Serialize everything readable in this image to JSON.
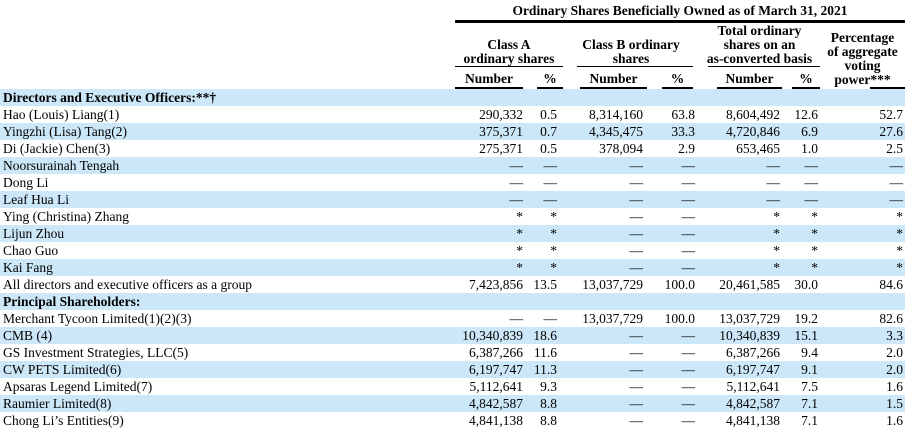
{
  "colors": {
    "row_alt_background": "#cce7f8",
    "text": "#000000",
    "rule": "#000000"
  },
  "table": {
    "title": "Ordinary Shares Beneficially Owned as of March 31, 2021",
    "groups": [
      {
        "label": "Class A ordinary shares",
        "lines": [
          "Class A",
          "ordinary shares"
        ]
      },
      {
        "label": "Class B ordinary shares",
        "lines": [
          "Class B ordinary",
          "shares"
        ]
      },
      {
        "label": "Total ordinary shares on an as-converted basis",
        "lines": [
          "Total ordinary",
          "shares on an",
          "as-converted basis"
        ]
      },
      {
        "label": "Percentage of aggregate voting power***",
        "lines": [
          "Percentage",
          "of aggregate",
          "voting",
          "power***"
        ]
      }
    ],
    "subheaders": [
      "Number",
      "%",
      "Number",
      "%",
      "Number",
      "%"
    ],
    "rows": [
      {
        "type": "section",
        "name": "Directors and Executive Officers:**†",
        "values": [
          "",
          "",
          "",
          "",
          "",
          "",
          ""
        ]
      },
      {
        "type": "data",
        "name": "Hao (Louis) Liang(1)",
        "values": [
          "290,332",
          "0.5",
          "8,314,160",
          "63.8",
          "8,604,492",
          "12.6",
          "52.7"
        ]
      },
      {
        "type": "data",
        "name": "Yingzhi (Lisa) Tang(2)",
        "values": [
          "375,371",
          "0.7",
          "4,345,475",
          "33.3",
          "4,720,846",
          "6.9",
          "27.6"
        ]
      },
      {
        "type": "data",
        "name": "Di (Jackie) Chen(3)",
        "values": [
          "275,371",
          "0.5",
          "378,094",
          "2.9",
          "653,465",
          "1.0",
          "2.5"
        ]
      },
      {
        "type": "data",
        "name": "Noorsurainah Tengah",
        "values": [
          "—",
          "—",
          "—",
          "—",
          "—",
          "—",
          "—"
        ]
      },
      {
        "type": "data",
        "name": "Dong Li",
        "values": [
          "—",
          "—",
          "—",
          "—",
          "—",
          "—",
          "—"
        ]
      },
      {
        "type": "data",
        "name": "Leaf Hua Li",
        "values": [
          "—",
          "—",
          "—",
          "—",
          "—",
          "—",
          "—"
        ]
      },
      {
        "type": "data",
        "name": "Ying (Christina) Zhang",
        "values": [
          "*",
          "*",
          "—",
          "—",
          "*",
          "*",
          "*"
        ]
      },
      {
        "type": "data",
        "name": "Lijun Zhou",
        "values": [
          "*",
          "*",
          "—",
          "—",
          "*",
          "*",
          "*"
        ]
      },
      {
        "type": "data",
        "name": "Chao Guo",
        "values": [
          "*",
          "*",
          "—",
          "—",
          "*",
          "*",
          "*"
        ]
      },
      {
        "type": "data",
        "name": "Kai Fang",
        "values": [
          "*",
          "*",
          "—",
          "—",
          "*",
          "*",
          "*"
        ]
      },
      {
        "type": "data",
        "name": "All directors and executive officers as a group",
        "values": [
          "7,423,856",
          "13.5",
          "13,037,729",
          "100.0",
          "20,461,585",
          "30.0",
          "84.6"
        ]
      },
      {
        "type": "section",
        "name": "Principal Shareholders:",
        "values": [
          "",
          "",
          "",
          "",
          "",
          "",
          ""
        ]
      },
      {
        "type": "data",
        "name": "Merchant Tycoon Limited(1)(2)(3)",
        "values": [
          "—",
          "—",
          "13,037,729",
          "100.0",
          "13,037,729",
          "19.2",
          "82.6"
        ]
      },
      {
        "type": "data",
        "name": "CMB (4)",
        "values": [
          "10,340,839",
          "18.6",
          "—",
          "—",
          "10,340,839",
          "15.1",
          "3.3"
        ]
      },
      {
        "type": "data",
        "name": "GS Investment Strategies, LLC(5)",
        "values": [
          "6,387,266",
          "11.6",
          "—",
          "—",
          "6,387,266",
          "9.4",
          "2.0"
        ]
      },
      {
        "type": "data",
        "name": "CW PETS Limited(6)",
        "values": [
          "6,197,747",
          "11.3",
          "—",
          "—",
          "6,197,747",
          "9.1",
          "2.0"
        ]
      },
      {
        "type": "data",
        "name": "Apsaras Legend Limited(7)",
        "values": [
          "5,112,641",
          "9.3",
          "—",
          "—",
          "5,112,641",
          "7.5",
          "1.6"
        ]
      },
      {
        "type": "data",
        "name": "Raumier Limited(8)",
        "values": [
          "4,842,587",
          "8.8",
          "—",
          "—",
          "4,842,587",
          "7.1",
          "1.5"
        ]
      },
      {
        "type": "data",
        "name": "Chong Li’s Entities(9)",
        "values": [
          "4,841,138",
          "8.8",
          "—",
          "—",
          "4,841,138",
          "7.1",
          "1.6"
        ]
      }
    ]
  }
}
